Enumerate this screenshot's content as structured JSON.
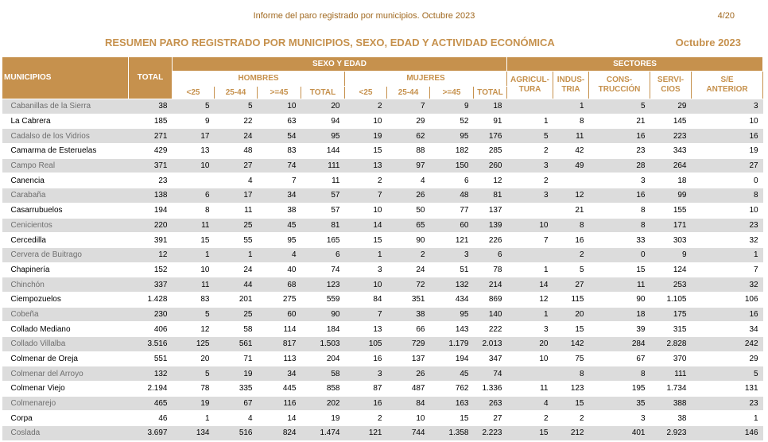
{
  "header": {
    "report_title": "Informe del paro registrado por municipios. Octubre 2023",
    "page": "4/20"
  },
  "heading": {
    "title": "RESUMEN PARO REGISTRADO POR MUNICIPIOS, SEXO, EDAD Y ACTIVIDAD ECONÓMICA",
    "date": "Octubre 2023"
  },
  "table": {
    "col_municipios": "MUNICIPIOS",
    "col_total": "TOTAL",
    "group_sexo_edad": "SEXO Y EDAD",
    "group_sectores": "SECTORES",
    "hombres": "HOMBRES",
    "mujeres": "MUJERES",
    "age_lt25": "<25",
    "age_25_44": "25-44",
    "age_ge45": ">=45",
    "sub_total": "TOTAL",
    "agricultura": "AGRICUL-\nTURA",
    "industria": "INDUS-\nTRIA",
    "construccion": "CONS-\nTRUCCIÓN",
    "servicios": "SERVI-\nCIOS",
    "sin_empleo": "S/E\nANTERIOR",
    "rows": [
      [
        "Cabanillas de la Sierra",
        "38",
        "5",
        "5",
        "10",
        "20",
        "2",
        "7",
        "9",
        "18",
        "",
        "1",
        "5",
        "29",
        "3"
      ],
      [
        "La Cabrera",
        "185",
        "9",
        "22",
        "63",
        "94",
        "10",
        "29",
        "52",
        "91",
        "1",
        "8",
        "21",
        "145",
        "10"
      ],
      [
        "Cadalso de los Vidrios",
        "271",
        "17",
        "24",
        "54",
        "95",
        "19",
        "62",
        "95",
        "176",
        "5",
        "11",
        "16",
        "223",
        "16"
      ],
      [
        "Camarma de Esteruelas",
        "429",
        "13",
        "48",
        "83",
        "144",
        "15",
        "88",
        "182",
        "285",
        "2",
        "42",
        "23",
        "343",
        "19"
      ],
      [
        "Campo Real",
        "371",
        "10",
        "27",
        "74",
        "111",
        "13",
        "97",
        "150",
        "260",
        "3",
        "49",
        "28",
        "264",
        "27"
      ],
      [
        "Canencia",
        "23",
        "",
        "4",
        "7",
        "11",
        "2",
        "4",
        "6",
        "12",
        "2",
        "",
        "3",
        "18",
        "0"
      ],
      [
        "Carabaña",
        "138",
        "6",
        "17",
        "34",
        "57",
        "7",
        "26",
        "48",
        "81",
        "3",
        "12",
        "16",
        "99",
        "8"
      ],
      [
        "Casarrubuelos",
        "194",
        "8",
        "11",
        "38",
        "57",
        "10",
        "50",
        "77",
        "137",
        "",
        "21",
        "8",
        "155",
        "10"
      ],
      [
        "Cenicientos",
        "220",
        "11",
        "25",
        "45",
        "81",
        "14",
        "65",
        "60",
        "139",
        "10",
        "8",
        "8",
        "171",
        "23"
      ],
      [
        "Cercedilla",
        "391",
        "15",
        "55",
        "95",
        "165",
        "15",
        "90",
        "121",
        "226",
        "7",
        "16",
        "33",
        "303",
        "32"
      ],
      [
        "Cervera de Buitrago",
        "12",
        "1",
        "1",
        "4",
        "6",
        "1",
        "2",
        "3",
        "6",
        "",
        "2",
        "0",
        "9",
        "1"
      ],
      [
        "Chapinería",
        "152",
        "10",
        "24",
        "40",
        "74",
        "3",
        "24",
        "51",
        "78",
        "1",
        "5",
        "15",
        "124",
        "7"
      ],
      [
        "Chinchón",
        "337",
        "11",
        "44",
        "68",
        "123",
        "10",
        "72",
        "132",
        "214",
        "14",
        "27",
        "11",
        "253",
        "32"
      ],
      [
        "Ciempozuelos",
        "1.428",
        "83",
        "201",
        "275",
        "559",
        "84",
        "351",
        "434",
        "869",
        "12",
        "115",
        "90",
        "1.105",
        "106"
      ],
      [
        "Cobeña",
        "230",
        "5",
        "25",
        "60",
        "90",
        "7",
        "38",
        "95",
        "140",
        "1",
        "20",
        "18",
        "175",
        "16"
      ],
      [
        "Collado Mediano",
        "406",
        "12",
        "58",
        "114",
        "184",
        "13",
        "66",
        "143",
        "222",
        "3",
        "15",
        "39",
        "315",
        "34"
      ],
      [
        "Collado Villalba",
        "3.516",
        "125",
        "561",
        "817",
        "1.503",
        "105",
        "729",
        "1.179",
        "2.013",
        "20",
        "142",
        "284",
        "2.828",
        "242"
      ],
      [
        "Colmenar de Oreja",
        "551",
        "20",
        "71",
        "113",
        "204",
        "16",
        "137",
        "194",
        "347",
        "10",
        "75",
        "67",
        "370",
        "29"
      ],
      [
        "Colmenar del Arroyo",
        "132",
        "5",
        "19",
        "34",
        "58",
        "3",
        "26",
        "45",
        "74",
        "",
        "8",
        "8",
        "111",
        "5"
      ],
      [
        "Colmenar Viejo",
        "2.194",
        "78",
        "335",
        "445",
        "858",
        "87",
        "487",
        "762",
        "1.336",
        "11",
        "123",
        "195",
        "1.734",
        "131"
      ],
      [
        "Colmenarejo",
        "465",
        "19",
        "67",
        "116",
        "202",
        "16",
        "84",
        "163",
        "263",
        "4",
        "15",
        "35",
        "388",
        "23"
      ],
      [
        "Corpa",
        "46",
        "1",
        "4",
        "14",
        "19",
        "2",
        "10",
        "15",
        "27",
        "2",
        "2",
        "3",
        "38",
        "1"
      ],
      [
        "Coslada",
        "3.697",
        "134",
        "516",
        "824",
        "1.474",
        "121",
        "744",
        "1.358",
        "2.223",
        "15",
        "212",
        "401",
        "2.923",
        "146"
      ]
    ]
  }
}
